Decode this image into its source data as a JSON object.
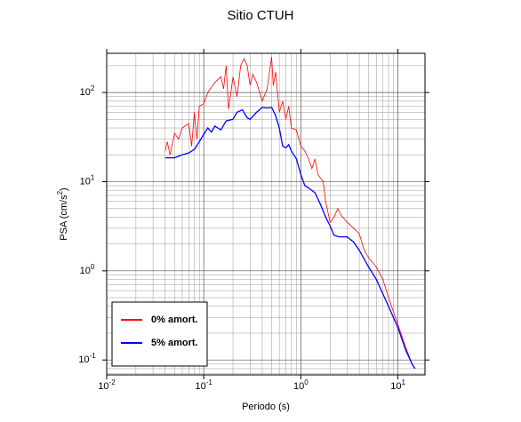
{
  "chart_data": {
    "type": "line",
    "title": "Sitio CTUH",
    "x_label": "Periodo (s)",
    "y_label": {
      "text": "PSA (cm/s",
      "sup": "2",
      "tail": ")"
    },
    "x_log": true,
    "y_log": true,
    "grid": true,
    "minor_grid": true,
    "legend_position": "lower-left",
    "xlim": [
      0.01,
      19
    ],
    "ylim": [
      0.068,
      275
    ],
    "xticks": [
      {
        "value": 0.01,
        "label": "10",
        "exp": "-2"
      },
      {
        "value": 0.1,
        "label": "10",
        "exp": "-1"
      },
      {
        "value": 1,
        "label": "10",
        "exp": "0"
      },
      {
        "value": 10,
        "label": "10",
        "exp": "1"
      }
    ],
    "yticks": [
      {
        "value": 0.1,
        "label": "10",
        "exp": "-1"
      },
      {
        "value": 1,
        "label": "10",
        "exp": "0"
      },
      {
        "value": 10,
        "label": "10",
        "exp": "1"
      },
      {
        "value": 100,
        "label": "10",
        "exp": "2"
      }
    ],
    "series": [
      {
        "name": "0% amort.",
        "color": "#ff0000",
        "width": 0.8,
        "x": [
          0.04,
          0.042,
          0.045,
          0.05,
          0.055,
          0.06,
          0.07,
          0.075,
          0.08,
          0.085,
          0.09,
          0.1,
          0.11,
          0.13,
          0.15,
          0.16,
          0.17,
          0.18,
          0.2,
          0.22,
          0.24,
          0.26,
          0.28,
          0.3,
          0.32,
          0.35,
          0.4,
          0.45,
          0.5,
          0.52,
          0.55,
          0.6,
          0.65,
          0.7,
          0.75,
          0.8,
          0.9,
          1.0,
          1.1,
          1.2,
          1.3,
          1.4,
          1.5,
          1.7,
          1.8,
          2.0,
          2.2,
          2.4,
          2.6,
          3.0,
          3.5,
          4.0,
          4.5,
          5,
          6,
          7,
          8,
          10,
          12,
          14,
          15
        ],
        "values": [
          22,
          28,
          20,
          35,
          30,
          40,
          45,
          25,
          60,
          30,
          70,
          75,
          100,
          130,
          150,
          110,
          200,
          65,
          150,
          90,
          200,
          240,
          200,
          120,
          160,
          130,
          80,
          110,
          250,
          120,
          170,
          60,
          80,
          50,
          70,
          40,
          38,
          25,
          22,
          18,
          14,
          18,
          12,
          10,
          6,
          3.5,
          4,
          5,
          4.2,
          3.5,
          3,
          2.6,
          1.7,
          1.4,
          1.1,
          0.8,
          0.5,
          0.25,
          0.14,
          0.09,
          0.08
        ]
      },
      {
        "name": "5% amort.",
        "color": "#0000ff",
        "width": 1.3,
        "x": [
          0.04,
          0.05,
          0.06,
          0.07,
          0.08,
          0.09,
          0.1,
          0.11,
          0.12,
          0.13,
          0.15,
          0.17,
          0.2,
          0.22,
          0.25,
          0.28,
          0.3,
          0.35,
          0.4,
          0.45,
          0.5,
          0.55,
          0.6,
          0.65,
          0.7,
          0.75,
          0.8,
          0.9,
          1.0,
          1.1,
          1.2,
          1.4,
          1.6,
          1.8,
          2.0,
          2.2,
          2.5,
          3.0,
          3.5,
          4.0,
          5.0,
          6.0,
          7.0,
          8.0,
          10,
          12,
          14,
          15
        ],
        "values": [
          18.5,
          18.5,
          20,
          21,
          23,
          28,
          34,
          40,
          36,
          42,
          38,
          48,
          50,
          60,
          64,
          52,
          50,
          60,
          68,
          67,
          68,
          55,
          40,
          25,
          24,
          26,
          22,
          18,
          12,
          9,
          8.5,
          7.5,
          5.5,
          4,
          3.2,
          2.5,
          2.4,
          2.4,
          2.1,
          1.7,
          1.1,
          0.8,
          0.55,
          0.4,
          0.23,
          0.13,
          0.09,
          0.08
        ]
      }
    ]
  }
}
